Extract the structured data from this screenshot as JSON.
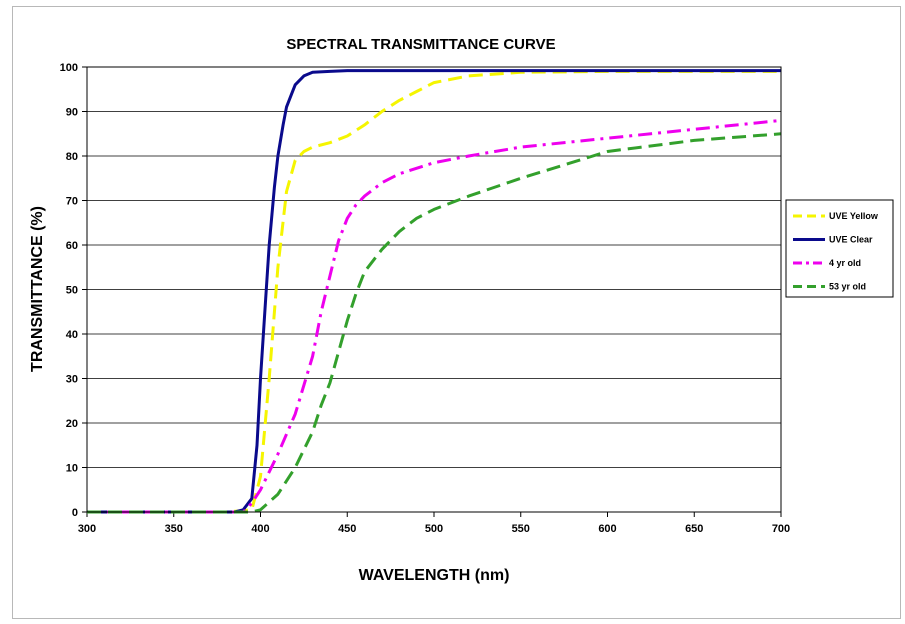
{
  "chart_data": {
    "type": "line",
    "title": "SPECTRAL TRANSMITTANCE CURVE",
    "xlabel": "WAVELENGTH (nm)",
    "ylabel": "TRANSMITTANCE (%)",
    "xlim": [
      300,
      700
    ],
    "ylim": [
      0,
      100
    ],
    "xticks": [
      300,
      350,
      400,
      450,
      500,
      550,
      600,
      650,
      700
    ],
    "yticks": [
      0,
      10,
      20,
      30,
      40,
      50,
      60,
      70,
      80,
      90,
      100
    ],
    "grid": "horizontal",
    "legend_position": "right",
    "series": [
      {
        "name": "UVE Yellow",
        "color": "#f5f500",
        "style": "dashed",
        "x": [
          300,
          380,
          395,
          400,
          405,
          410,
          415,
          420,
          425,
          430,
          440,
          450,
          460,
          470,
          480,
          490,
          500,
          520,
          550,
          600,
          650,
          700
        ],
        "y": [
          0,
          0,
          0.5,
          8,
          30,
          55,
          72,
          79,
          81,
          82,
          83,
          84.5,
          87,
          90,
          92.5,
          94.5,
          96.5,
          98,
          98.8,
          99,
          99,
          99
        ]
      },
      {
        "name": "UVE Clear",
        "color": "#0a0a8c",
        "style": "solid",
        "x": [
          300,
          385,
          390,
          395,
          398,
          400,
          403,
          405,
          408,
          410,
          413,
          415,
          418,
          420,
          425,
          430,
          440,
          450,
          500,
          600,
          700
        ],
        "y": [
          0,
          0,
          0.5,
          3,
          15,
          30,
          48,
          60,
          73,
          80,
          87,
          91,
          94,
          96,
          98,
          98.8,
          99,
          99.2,
          99.2,
          99.2,
          99.2
        ]
      },
      {
        "name": "4 yr old",
        "color": "#ee00ee",
        "style": "dash-dot",
        "x": [
          300,
          390,
          395,
          400,
          410,
          420,
          430,
          435,
          440,
          445,
          450,
          455,
          460,
          470,
          480,
          500,
          520,
          550,
          600,
          650,
          700
        ],
        "y": [
          0,
          0,
          2,
          5,
          13,
          22,
          35,
          45,
          53,
          61,
          66,
          69,
          71,
          74,
          76,
          78.5,
          80,
          82,
          84,
          86,
          88
        ]
      },
      {
        "name": "53 yr old",
        "color": "#33a02c",
        "style": "dashed",
        "x": [
          300,
          395,
          400,
          410,
          420,
          430,
          435,
          440,
          445,
          450,
          455,
          460,
          470,
          480,
          490,
          500,
          520,
          550,
          600,
          650,
          700
        ],
        "y": [
          0,
          0,
          0.5,
          4,
          10,
          18,
          24,
          29,
          36,
          43,
          49,
          54,
          59,
          63,
          66,
          68,
          71,
          75,
          81,
          83.5,
          85
        ]
      }
    ]
  }
}
